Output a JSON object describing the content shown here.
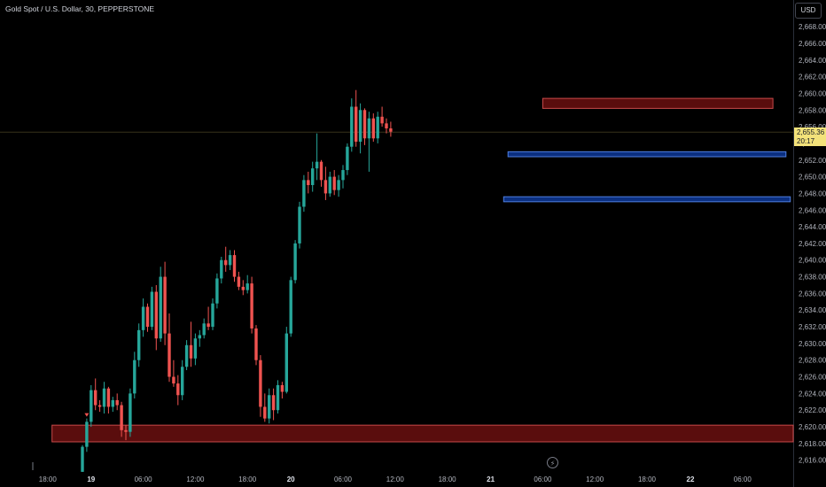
{
  "header": {
    "title": "Gold Spot / U.S. Dollar, 30, PEPPERSTONE",
    "currency": "USD"
  },
  "price_label": {
    "price": "2,655.36",
    "countdown": "20:17"
  },
  "icons": {
    "event": "lightning-icon"
  },
  "colors": {
    "up": "#26a69a",
    "down": "#ef5350",
    "supply_fill": "#5a0d0d",
    "supply_border": "#c84a4a",
    "demand_fill": "#0b2f80",
    "demand_border": "#4f7fe0",
    "price_line": "#f3e27a",
    "background": "#000000"
  },
  "chart_data": {
    "type": "candlestick",
    "title": "Gold Spot / U.S. Dollar, 30, PEPPERSTONE",
    "ylim": [
      2614.8,
      2671.2
    ],
    "y_ticks": [
      "2,616.00",
      "2,618.00",
      "2,620.00",
      "2,622.00",
      "2,624.00",
      "2,626.00",
      "2,628.00",
      "2,630.00",
      "2,632.00",
      "2,634.00",
      "2,636.00",
      "2,638.00",
      "2,640.00",
      "2,642.00",
      "2,644.00",
      "2,646.00",
      "2,648.00",
      "2,650.00",
      "2,652.00",
      "2,654.00",
      "2,656.00",
      "2,658.00",
      "2,660.00",
      "2,662.00",
      "2,664.00",
      "2,666.00",
      "2,668.00"
    ],
    "x_ticks": [
      {
        "label": "18:00",
        "bar": -8
      },
      {
        "label": "19",
        "bar": 2
      },
      {
        "label": "06:00",
        "bar": 14
      },
      {
        "label": "12:00",
        "bar": 26
      },
      {
        "label": "18:00",
        "bar": 38
      },
      {
        "label": "20",
        "bar": 48
      },
      {
        "label": "06:00",
        "bar": 60
      },
      {
        "label": "12:00",
        "bar": 72
      },
      {
        "label": "18:00",
        "bar": 84
      },
      {
        "label": "21",
        "bar": 94
      },
      {
        "label": "06:00",
        "bar": 106
      },
      {
        "label": "12:00",
        "bar": 118
      },
      {
        "label": "18:00",
        "bar": 130
      },
      {
        "label": "22",
        "bar": 140
      },
      {
        "label": "06:00",
        "bar": 152
      }
    ],
    "last_price": 2655.36,
    "candles": [
      [
        2614.6,
        2617.8,
        2614.6,
        2617.6
      ],
      [
        2617.6,
        2621.0,
        2617.0,
        2620.6
      ],
      [
        2620.6,
        2625.0,
        2620.0,
        2624.4
      ],
      [
        2624.4,
        2625.8,
        2622.0,
        2622.6
      ],
      [
        2622.6,
        2623.2,
        2621.8,
        2622.4
      ],
      [
        2622.4,
        2625.4,
        2621.6,
        2624.6
      ],
      [
        2624.6,
        2624.8,
        2621.6,
        2622.4
      ],
      [
        2622.4,
        2623.6,
        2621.8,
        2623.2
      ],
      [
        2623.2,
        2624.0,
        2622.0,
        2622.6
      ],
      [
        2622.6,
        2623.0,
        2618.8,
        2619.6
      ],
      [
        2619.6,
        2620.2,
        2618.4,
        2619.4
      ],
      [
        2619.4,
        2624.6,
        2618.8,
        2624.0
      ],
      [
        2624.0,
        2629.0,
        2623.4,
        2628.0
      ],
      [
        2628.0,
        2632.4,
        2627.2,
        2631.6
      ],
      [
        2631.6,
        2635.4,
        2630.8,
        2634.4
      ],
      [
        2634.4,
        2634.8,
        2631.4,
        2632.0
      ],
      [
        2632.0,
        2636.8,
        2631.6,
        2636.2
      ],
      [
        2636.2,
        2637.0,
        2629.2,
        2630.6
      ],
      [
        2630.6,
        2639.2,
        2630.2,
        2638.0
      ],
      [
        2638.0,
        2639.8,
        2629.8,
        2631.2
      ],
      [
        2631.2,
        2633.6,
        2625.4,
        2626.0
      ],
      [
        2626.0,
        2628.0,
        2624.8,
        2625.2
      ],
      [
        2625.2,
        2626.2,
        2622.6,
        2623.8
      ],
      [
        2623.8,
        2628.0,
        2623.2,
        2627.2
      ],
      [
        2627.2,
        2630.4,
        2626.8,
        2629.8
      ],
      [
        2629.8,
        2632.6,
        2627.2,
        2628.2
      ],
      [
        2628.2,
        2631.2,
        2627.4,
        2630.6
      ],
      [
        2630.6,
        2631.6,
        2629.6,
        2631.0
      ],
      [
        2631.0,
        2633.0,
        2630.6,
        2632.4
      ],
      [
        2632.4,
        2634.4,
        2631.6,
        2632.0
      ],
      [
        2632.0,
        2635.4,
        2631.6,
        2634.8
      ],
      [
        2634.8,
        2638.4,
        2634.2,
        2637.8
      ],
      [
        2637.8,
        2640.4,
        2637.2,
        2640.0
      ],
      [
        2640.0,
        2641.6,
        2638.6,
        2639.4
      ],
      [
        2639.4,
        2641.2,
        2638.8,
        2640.6
      ],
      [
        2640.6,
        2641.2,
        2637.4,
        2638.0
      ],
      [
        2638.0,
        2638.6,
        2636.4,
        2636.8
      ],
      [
        2636.8,
        2637.6,
        2635.8,
        2636.4
      ],
      [
        2636.4,
        2638.2,
        2636.0,
        2637.2
      ],
      [
        2637.2,
        2638.0,
        2631.2,
        2631.8
      ],
      [
        2631.8,
        2632.2,
        2627.4,
        2628.0
      ],
      [
        2628.0,
        2628.6,
        2621.2,
        2622.4
      ],
      [
        2622.4,
        2624.0,
        2620.6,
        2621.0
      ],
      [
        2621.0,
        2624.6,
        2620.4,
        2623.8
      ],
      [
        2623.8,
        2624.6,
        2620.8,
        2622.0
      ],
      [
        2622.0,
        2625.6,
        2621.6,
        2625.0
      ],
      [
        2625.0,
        2625.4,
        2623.4,
        2624.2
      ],
      [
        2624.2,
        2632.0,
        2624.0,
        2631.2
      ],
      [
        2631.2,
        2638.0,
        2630.8,
        2637.6
      ],
      [
        2637.6,
        2642.4,
        2637.2,
        2642.0
      ],
      [
        2642.0,
        2647.0,
        2641.4,
        2646.4
      ],
      [
        2646.4,
        2650.2,
        2645.8,
        2649.6
      ],
      [
        2649.6,
        2650.6,
        2648.0,
        2649.0
      ],
      [
        2649.0,
        2651.8,
        2648.2,
        2651.0
      ],
      [
        2651.0,
        2655.2,
        2649.6,
        2651.8
      ],
      [
        2651.8,
        2652.0,
        2648.8,
        2649.6
      ],
      [
        2649.6,
        2651.2,
        2647.2,
        2648.0
      ],
      [
        2648.0,
        2650.6,
        2647.6,
        2650.0
      ],
      [
        2650.0,
        2650.8,
        2647.8,
        2648.4
      ],
      [
        2648.4,
        2650.2,
        2647.6,
        2649.6
      ],
      [
        2649.6,
        2651.4,
        2648.6,
        2650.8
      ],
      [
        2650.8,
        2654.0,
        2650.2,
        2653.6
      ],
      [
        2653.6,
        2659.4,
        2653.0,
        2658.4
      ],
      [
        2658.4,
        2660.4,
        2653.6,
        2654.2
      ],
      [
        2654.2,
        2658.8,
        2652.8,
        2658.0
      ],
      [
        2658.0,
        2658.2,
        2653.8,
        2654.6
      ],
      [
        2654.6,
        2657.8,
        2650.6,
        2657.0
      ],
      [
        2657.0,
        2657.6,
        2654.2,
        2654.6
      ],
      [
        2654.6,
        2657.8,
        2654.0,
        2657.2
      ],
      [
        2657.2,
        2658.4,
        2656.0,
        2656.4
      ],
      [
        2656.4,
        2657.0,
        2655.2,
        2655.8
      ],
      [
        2655.8,
        2656.6,
        2654.8,
        2655.4
      ]
    ],
    "zones": [
      {
        "kind": "supply",
        "from_bar": 106,
        "to_bar": 159,
        "top": 2659.4,
        "bottom": 2658.2
      },
      {
        "kind": "demand",
        "from_bar": 98,
        "to_bar": 162,
        "top": 2653.0,
        "bottom": 2652.4
      },
      {
        "kind": "demand",
        "from_bar": 97,
        "to_bar": 163,
        "top": 2647.6,
        "bottom": 2647.0
      },
      {
        "kind": "supply",
        "from_bar": -7,
        "to_bar": 164,
        "top": 2620.2,
        "bottom": 2618.2
      }
    ],
    "arrow_bars": [
      1,
      77
    ]
  }
}
